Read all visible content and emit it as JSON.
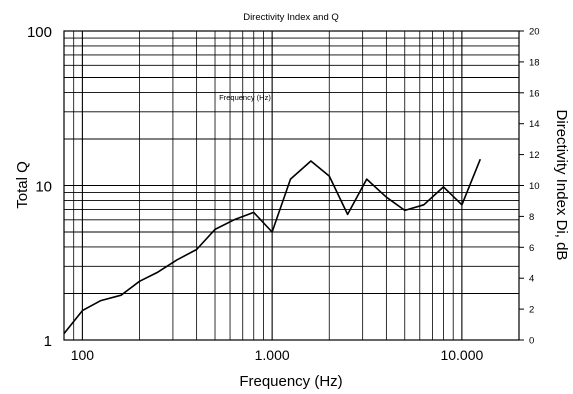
{
  "chart_data": {
    "type": "line",
    "title": "Directivity Index and Q",
    "inner_label": "Frequency (Hz)",
    "xlabel": "Frequency (Hz)",
    "ylabel_left": "Total Q",
    "ylabel_right": "Directivity Index Di, dB",
    "x_scale": "log",
    "y_scale_left": "log",
    "xlim": [
      80,
      20000
    ],
    "ylim_left": [
      1,
      100
    ],
    "ylim_right": [
      0,
      20
    ],
    "grid": true,
    "x_ticks": [
      {
        "value": 100,
        "label": "100"
      },
      {
        "value": 1000,
        "label": "1.000"
      },
      {
        "value": 10000,
        "label": "10.000"
      }
    ],
    "y_ticks_left": [
      {
        "value": 1,
        "label": "1"
      },
      {
        "value": 10,
        "label": "10"
      },
      {
        "value": 100,
        "label": "100"
      }
    ],
    "y_ticks_right": [
      "0",
      "2",
      "4",
      "6",
      "8",
      "10",
      "12",
      "14",
      "16",
      "18",
      "20"
    ],
    "series": [
      {
        "x": [
          80,
          100,
          125,
          160,
          200,
          250,
          315,
          400,
          500,
          630,
          800,
          1000,
          1250,
          1600,
          2000,
          2500,
          3150,
          4000,
          5000,
          6300,
          8000,
          10000,
          12500
        ],
        "values": [
          1.1,
          1.55,
          1.8,
          1.95,
          2.4,
          2.75,
          3.3,
          3.85,
          5.2,
          6.0,
          6.7,
          5.0,
          11.0,
          14.4,
          11.5,
          6.5,
          11.0,
          8.4,
          6.9,
          7.5,
          9.8,
          7.5,
          14.8
        ]
      }
    ]
  }
}
